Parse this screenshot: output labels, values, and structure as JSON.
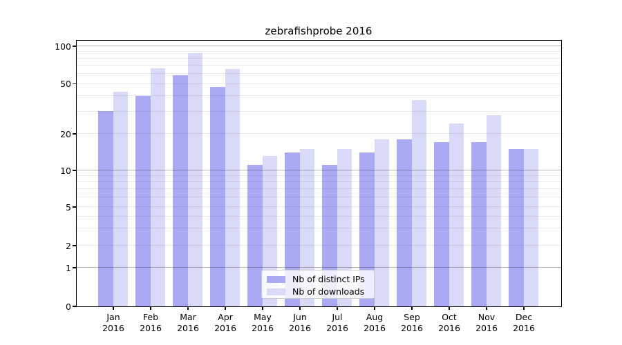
{
  "title": "zebrafishprobe 2016",
  "chart_data": {
    "type": "bar",
    "title": "zebrafishprobe 2016",
    "categories": [
      "Jan 2016",
      "Feb 2016",
      "Mar 2016",
      "Apr 2016",
      "May 2016",
      "Jun 2016",
      "Jul 2016",
      "Aug 2016",
      "Sep 2016",
      "Oct 2016",
      "Nov 2016",
      "Dec 2016"
    ],
    "x_tick_month": [
      "Jan",
      "Feb",
      "Mar",
      "Apr",
      "May",
      "Jun",
      "Jul",
      "Aug",
      "Sep",
      "Oct",
      "Nov",
      "Dec"
    ],
    "x_tick_year": "2016",
    "series": [
      {
        "name": "Nb of distinct IPs",
        "color": "#a9a9f4",
        "values": [
          30,
          40,
          58,
          47,
          11,
          14,
          11,
          14,
          18,
          17,
          17,
          15
        ]
      },
      {
        "name": "Nb of downloads",
        "color": "#d9d9f8",
        "values": [
          43,
          66,
          88,
          65,
          13,
          15,
          15,
          18,
          37,
          24,
          28,
          15
        ]
      }
    ],
    "yscale": "log",
    "ylabel": "",
    "xlabel": "",
    "y_ticks": [
      {
        "value": 100,
        "label": "100"
      },
      {
        "value": 50,
        "label": "50"
      },
      {
        "value": 20,
        "label": "20"
      },
      {
        "value": 10,
        "label": "10"
      },
      {
        "value": 5,
        "label": "5"
      },
      {
        "value": 2,
        "label": "2"
      },
      {
        "value": 1,
        "label": "1"
      },
      {
        "value": 0,
        "label": "0"
      }
    ],
    "grid": true,
    "legend_position": "lower center",
    "colors": {
      "distinct_ips": "#a9a9f4",
      "downloads": "#d9d9f8"
    }
  }
}
